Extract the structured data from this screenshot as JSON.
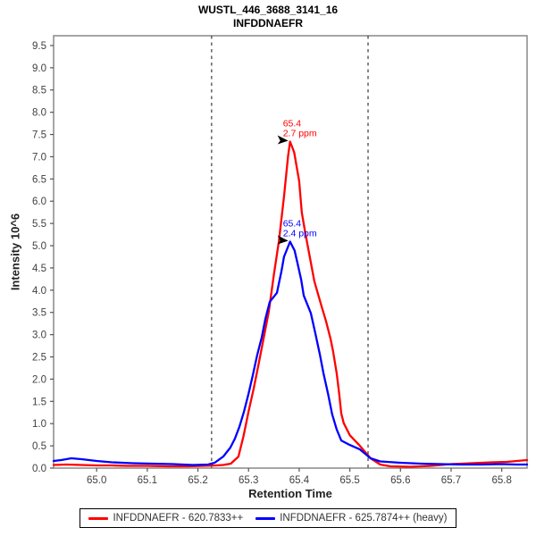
{
  "title": {
    "line1": "WUSTL_446_3688_3141_16",
    "line2": "INFDDNAEFR"
  },
  "axes": {
    "x_label": "Retention Time",
    "y_label": "Intensity 10^6"
  },
  "legend": {
    "items": [
      {
        "label": "INFDDNAEFR - 620.7833++",
        "color": "#ff0000"
      },
      {
        "label": "INFDDNAEFR - 625.7874++ (heavy)",
        "color": "#0000ff"
      }
    ]
  },
  "chart_data": {
    "type": "line",
    "title": "WUSTL_446_3688_3141_16 INFDDNAEFR",
    "xlabel": "Retention Time",
    "ylabel": "Intensity 10^6",
    "xlim": [
      64.915,
      65.85
    ],
    "ylim": [
      0,
      9.72
    ],
    "x_ticks": [
      65.0,
      65.1,
      65.2,
      65.3,
      65.4,
      65.5,
      65.6,
      65.7,
      65.8
    ],
    "y_ticks": [
      0.0,
      0.5,
      1.0,
      1.5,
      2.0,
      2.5,
      3.0,
      3.5,
      4.0,
      4.5,
      5.0,
      5.5,
      6.0,
      6.5,
      7.0,
      7.5,
      8.0,
      8.5,
      9.0,
      9.5
    ],
    "grid": false,
    "legend_position": "bottom",
    "peak_boundaries": [
      65.227,
      65.536
    ],
    "boundary_color": "#3a3a3a",
    "plot_border_color": "#808080",
    "tick_label_color": "#404040",
    "series": [
      {
        "name": "INFDDNAEFR - 620.7833++",
        "color": "#ff0000",
        "points": [
          [
            64.915,
            0.07
          ],
          [
            64.94,
            0.08
          ],
          [
            64.97,
            0.07
          ],
          [
            65.0,
            0.06
          ],
          [
            65.03,
            0.06
          ],
          [
            65.06,
            0.05
          ],
          [
            65.1,
            0.05
          ],
          [
            65.14,
            0.04
          ],
          [
            65.18,
            0.04
          ],
          [
            65.21,
            0.05
          ],
          [
            65.235,
            0.06
          ],
          [
            65.25,
            0.07
          ],
          [
            65.265,
            0.1
          ],
          [
            65.28,
            0.26
          ],
          [
            65.29,
            0.72
          ],
          [
            65.3,
            1.27
          ],
          [
            65.31,
            1.78
          ],
          [
            65.32,
            2.35
          ],
          [
            65.33,
            2.93
          ],
          [
            65.34,
            3.52
          ],
          [
            65.35,
            4.35
          ],
          [
            65.36,
            5.1
          ],
          [
            65.37,
            6.1
          ],
          [
            65.378,
            7.0
          ],
          [
            65.382,
            7.34
          ],
          [
            65.39,
            7.1
          ],
          [
            65.4,
            6.45
          ],
          [
            65.405,
            5.75
          ],
          [
            65.412,
            5.29
          ],
          [
            65.42,
            4.8
          ],
          [
            65.43,
            4.2
          ],
          [
            65.444,
            3.64
          ],
          [
            65.453,
            3.3
          ],
          [
            65.462,
            2.9
          ],
          [
            65.467,
            2.62
          ],
          [
            65.474,
            2.13
          ],
          [
            65.479,
            1.67
          ],
          [
            65.483,
            1.23
          ],
          [
            65.488,
            1.01
          ],
          [
            65.5,
            0.74
          ],
          [
            65.52,
            0.5
          ],
          [
            65.541,
            0.22
          ],
          [
            65.56,
            0.08
          ],
          [
            65.58,
            0.04
          ],
          [
            65.62,
            0.03
          ],
          [
            65.66,
            0.05
          ],
          [
            65.7,
            0.09
          ],
          [
            65.74,
            0.11
          ],
          [
            65.78,
            0.13
          ],
          [
            65.81,
            0.14
          ],
          [
            65.85,
            0.18
          ]
        ]
      },
      {
        "name": "INFDDNAEFR - 625.7874++ (heavy)",
        "color": "#0000ff",
        "points": [
          [
            64.915,
            0.16
          ],
          [
            64.93,
            0.18
          ],
          [
            64.95,
            0.22
          ],
          [
            64.97,
            0.2
          ],
          [
            65.0,
            0.16
          ],
          [
            65.03,
            0.13
          ],
          [
            65.07,
            0.11
          ],
          [
            65.11,
            0.1
          ],
          [
            65.15,
            0.09
          ],
          [
            65.19,
            0.07
          ],
          [
            65.22,
            0.08
          ],
          [
            65.233,
            0.12
          ],
          [
            65.25,
            0.26
          ],
          [
            65.264,
            0.46
          ],
          [
            65.273,
            0.66
          ],
          [
            65.282,
            0.93
          ],
          [
            65.291,
            1.27
          ],
          [
            65.3,
            1.67
          ],
          [
            65.308,
            2.07
          ],
          [
            65.317,
            2.54
          ],
          [
            65.326,
            2.94
          ],
          [
            65.333,
            3.34
          ],
          [
            65.342,
            3.74
          ],
          [
            65.356,
            3.94
          ],
          [
            65.365,
            4.43
          ],
          [
            65.37,
            4.75
          ],
          [
            65.377,
            4.95
          ],
          [
            65.382,
            5.09
          ],
          [
            65.391,
            4.89
          ],
          [
            65.397,
            4.59
          ],
          [
            65.404,
            4.23
          ],
          [
            65.409,
            3.88
          ],
          [
            65.423,
            3.48
          ],
          [
            65.432,
            3.02
          ],
          [
            65.441,
            2.54
          ],
          [
            65.448,
            2.13
          ],
          [
            65.457,
            1.67
          ],
          [
            65.465,
            1.21
          ],
          [
            65.474,
            0.87
          ],
          [
            65.483,
            0.62
          ],
          [
            65.5,
            0.52
          ],
          [
            65.52,
            0.42
          ],
          [
            65.541,
            0.22
          ],
          [
            65.56,
            0.15
          ],
          [
            65.6,
            0.12
          ],
          [
            65.64,
            0.1
          ],
          [
            65.68,
            0.09
          ],
          [
            65.72,
            0.08
          ],
          [
            65.76,
            0.08
          ],
          [
            65.8,
            0.09
          ],
          [
            65.83,
            0.08
          ],
          [
            65.85,
            0.08
          ]
        ]
      }
    ],
    "annotations": [
      {
        "rt_label": "65.4",
        "ppm_label": "2.7 ppm",
        "color": "#ff0000",
        "x": 65.382,
        "y": 7.34
      },
      {
        "rt_label": "65.4",
        "ppm_label": "2.4 ppm",
        "color": "#0000ff",
        "x": 65.382,
        "y": 5.09
      }
    ]
  }
}
